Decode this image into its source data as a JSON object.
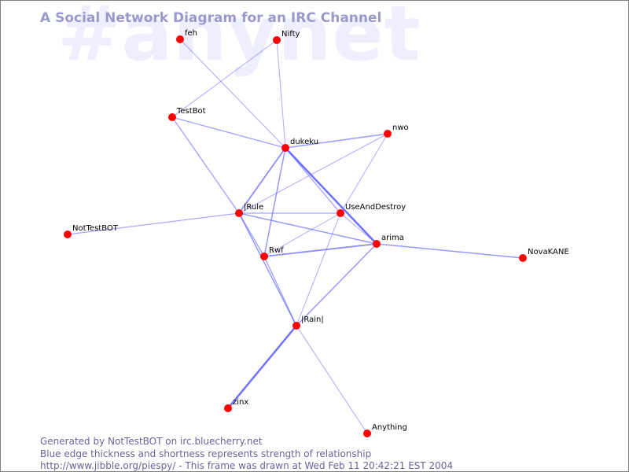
{
  "watermark": "#anynet",
  "title": "A Social Network Diagram for an IRC Channel",
  "footer": {
    "line1": "Generated by NotTestBOT on irc.bluecherry.net",
    "line2": "Blue edge thickness and shortness represents strength of relationship",
    "line3": "http://www.jibble.org/piespy/ - This frame was drawn at Wed Feb 11 20:42:21 EST 2004"
  },
  "colors": {
    "node": "#ff0000",
    "edge": "#6666ff",
    "title": "#9999cc",
    "watermark": "#eeeefc"
  },
  "nodes": [
    {
      "id": "feh"
    },
    {
      "id": "Nifty"
    },
    {
      "id": "TestBot"
    },
    {
      "id": "dukeku"
    },
    {
      "id": "nwo"
    },
    {
      "id": "|Rule"
    },
    {
      "id": "UseAndDestroy"
    },
    {
      "id": "arima"
    },
    {
      "id": "NovaKANE"
    },
    {
      "id": "NotTestBOT"
    },
    {
      "id": "Rwf"
    },
    {
      "id": "|Rain|"
    },
    {
      "id": "zinx"
    },
    {
      "id": "Anything"
    }
  ],
  "edges": [
    [
      "feh",
      "dukeku",
      1
    ],
    [
      "Nifty",
      "TestBot",
      1
    ],
    [
      "Nifty",
      "dukeku",
      1
    ],
    [
      "TestBot",
      "dukeku",
      1.3
    ],
    [
      "TestBot",
      "|Rule",
      1.3
    ],
    [
      "dukeku",
      "nwo",
      1.5
    ],
    [
      "dukeku",
      "|Rule",
      1.8
    ],
    [
      "dukeku",
      "Rwf",
      1.5
    ],
    [
      "dukeku",
      "arima",
      2.5
    ],
    [
      "dukeku",
      "UseAndDestroy",
      1.3
    ],
    [
      "nwo",
      "|Rule",
      1
    ],
    [
      "nwo",
      "UseAndDestroy",
      1
    ],
    [
      "|Rule",
      "UseAndDestroy",
      1.2
    ],
    [
      "|Rule",
      "arima",
      1.5
    ],
    [
      "|Rule",
      "NotTestBOT",
      1.2
    ],
    [
      "|Rule",
      "Rwf",
      1.3
    ],
    [
      "|Rule",
      "|Rain|",
      1.5
    ],
    [
      "Rwf",
      "arima",
      1.8
    ],
    [
      "Rwf",
      "UseAndDestroy",
      1
    ],
    [
      "Rwf",
      "|Rain|",
      1.3
    ],
    [
      "UseAndDestroy",
      "arima",
      1
    ],
    [
      "UseAndDestroy",
      "|Rain|",
      1
    ],
    [
      "arima",
      "|Rain|",
      1.5
    ],
    [
      "arima",
      "NovaKANE",
      1.5
    ],
    [
      "|Rain|",
      "zinx",
      2.5
    ],
    [
      "|Rain|",
      "Anything",
      1
    ]
  ]
}
